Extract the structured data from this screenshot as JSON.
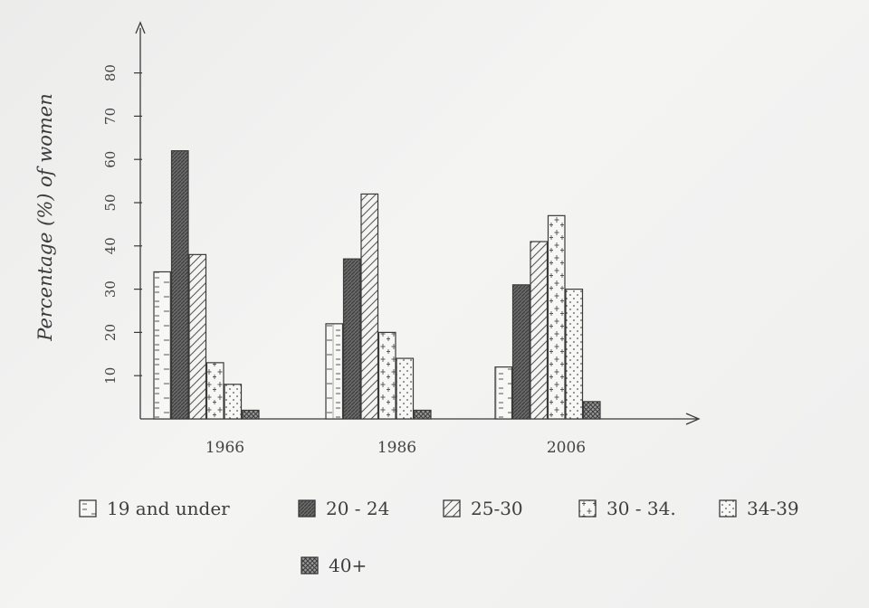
{
  "chart_data": {
    "type": "bar",
    "title": "",
    "xlabel": "",
    "ylabel": "Percentage (%) of women",
    "ylim": [
      0,
      85
    ],
    "yticks": [
      "10",
      "20",
      "30",
      "40",
      "50",
      "60",
      "70",
      "80"
    ],
    "categories": [
      "1966",
      "1986",
      "2006"
    ],
    "series": [
      {
        "name": "19 and under",
        "values": [
          34,
          22,
          12
        ]
      },
      {
        "name": "20 - 24",
        "values": [
          62,
          37,
          31
        ]
      },
      {
        "name": "25-30",
        "values": [
          38,
          52,
          41
        ]
      },
      {
        "name": "30 - 34.",
        "values": [
          13,
          20,
          47
        ]
      },
      {
        "name": "34-39",
        "values": [
          8,
          14,
          30
        ]
      },
      {
        "name": "40+",
        "values": [
          2,
          2,
          4
        ]
      }
    ],
    "grid": false,
    "legend_position": "bottom"
  },
  "colors": {
    "ink": "#3a3a3a",
    "dark_fill": "#6a6a6a",
    "paper": "#f1f1f0"
  }
}
